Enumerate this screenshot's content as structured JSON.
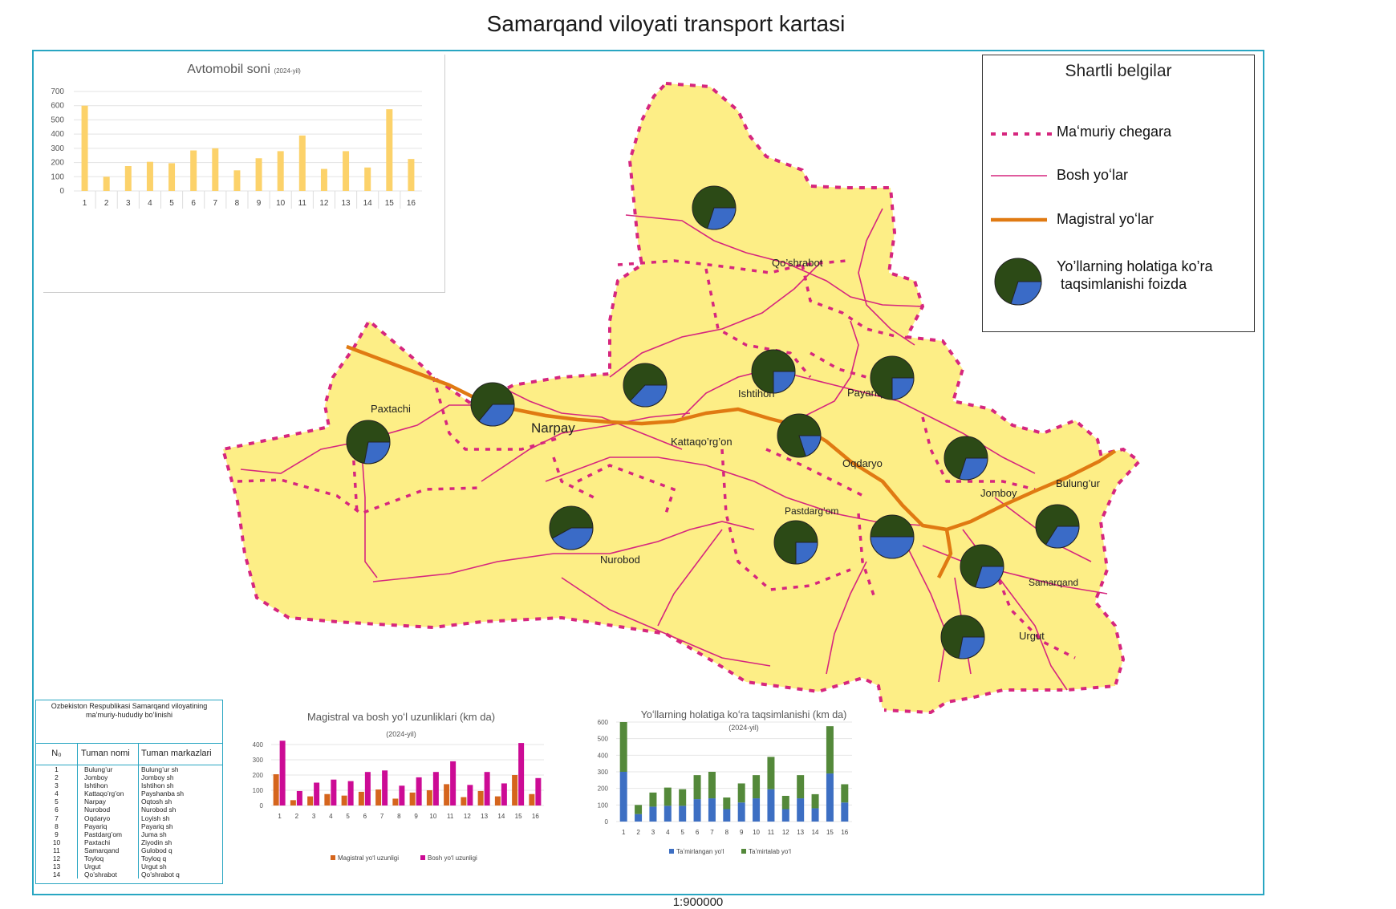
{
  "map_title": "Samarqand viloyati transport kartasi",
  "scale": "1:900000",
  "legend": {
    "title": "Shartli belgilar",
    "items": [
      {
        "label": "Maʻmuriy chegara",
        "color": "#d6267e",
        "icon": "dashed-line"
      },
      {
        "label": "Bosh yoʻlar",
        "color": "#d6267e",
        "icon": "thin-line"
      },
      {
        "label": "Magistral yoʻlar",
        "color": "#e07a12",
        "icon": "thick-line"
      },
      {
        "label": "Yo’llarning holatiga ko’ra\n taqsimlanishi foizda",
        "icon": "pie"
      }
    ]
  },
  "colors": {
    "land": "#fdee86",
    "border": "#d6267e",
    "highway": "#e07a12",
    "pie_good": "#3a6bc7",
    "pie_bad": "#2c4a16",
    "bar_yellow": "#fcd26a",
    "bar_orange": "#d5651d",
    "bar_magenta": "#cc0b95",
    "bar_blue": "#3d6fc3",
    "bar_green": "#54893a",
    "frame": "#29a6c2"
  },
  "places": [
    {
      "name": "Qo’shrabot"
    },
    {
      "name": "Paxtachi"
    },
    {
      "name": "Narpay"
    },
    {
      "name": "Kattaqo’rg’on"
    },
    {
      "name": "Ishtihon"
    },
    {
      "name": "Payariq"
    },
    {
      "name": "Oqdaryo"
    },
    {
      "name": "Jomboy"
    },
    {
      "name": "Bulung’ur"
    },
    {
      "name": "Pastdarg’om"
    },
    {
      "name": "Nurobod"
    },
    {
      "name": "Samarqand"
    },
    {
      "name": "Urgut"
    }
  ],
  "pies": [
    {
      "good_share": 0.3
    },
    {
      "good_share": 0.28
    },
    {
      "good_share": 0.36
    },
    {
      "good_share": 0.37
    },
    {
      "good_share": 0.25
    },
    {
      "good_share": 0.25
    },
    {
      "good_share": 0.2
    },
    {
      "good_share": 0.3
    },
    {
      "good_share": 0.34
    },
    {
      "good_share": 0.25
    },
    {
      "good_share": 0.42
    },
    {
      "good_share": 0.5
    },
    {
      "good_share": 0.3
    },
    {
      "good_share": 0.28
    }
  ],
  "chart_data": [
    {
      "type": "bar",
      "title": "Avtomobil soni",
      "subtitle": "(2024-yil)",
      "categories": [
        "1",
        "2",
        "3",
        "4",
        "5",
        "6",
        "7",
        "8",
        "9",
        "10",
        "11",
        "12",
        "13",
        "14",
        "15",
        "16"
      ],
      "values": [
        600,
        100,
        175,
        205,
        195,
        285,
        300,
        145,
        230,
        280,
        390,
        155,
        280,
        165,
        575,
        225
      ],
      "ylim": [
        0,
        700
      ],
      "yticks": [
        "0",
        "100",
        "200",
        "300",
        "400",
        "500",
        "600",
        "700"
      ]
    },
    {
      "type": "bar",
      "title": "Magistral va bosh yoʻl uzunliklari (km da)",
      "subtitle": "(2024-yil)",
      "categories": [
        "1",
        "2",
        "3",
        "4",
        "5",
        "6",
        "7",
        "8",
        "9",
        "10",
        "11",
        "12",
        "13",
        "14",
        "15",
        "16"
      ],
      "series": [
        {
          "name": "Magistral yoʻl uzunligi",
          "values": [
            205,
            35,
            60,
            75,
            65,
            90,
            105,
            45,
            85,
            100,
            140,
            55,
            95,
            60,
            200,
            75
          ]
        },
        {
          "name": "Bosh yoʻl uzunligi",
          "values": [
            425,
            95,
            150,
            170,
            160,
            220,
            230,
            130,
            185,
            220,
            290,
            135,
            220,
            145,
            410,
            180
          ]
        }
      ],
      "ylim": [
        0,
        400
      ],
      "yticks": [
        "0",
        "100",
        "200",
        "300",
        "400"
      ]
    },
    {
      "type": "bar",
      "title": "Yoʻllarning holatiga koʻra taqsimlanishi (km da)",
      "subtitle": "(2024-yil)",
      "categories": [
        "1",
        "2",
        "3",
        "4",
        "5",
        "6",
        "7",
        "8",
        "9",
        "10",
        "11",
        "12",
        "13",
        "14",
        "15",
        "16"
      ],
      "series": [
        {
          "name": "Taʼmirlangan yoʻl",
          "values": [
            300,
            45,
            90,
            95,
            95,
            135,
            140,
            75,
            115,
            140,
            195,
            75,
            140,
            80,
            290,
            115
          ]
        },
        {
          "name": "Taʼmirtalab yoʻl",
          "values": [
            300,
            55,
            85,
            110,
            100,
            145,
            160,
            70,
            115,
            140,
            195,
            80,
            140,
            85,
            285,
            110
          ]
        }
      ],
      "ylim": [
        0,
        600
      ],
      "yticks": [
        "0",
        "100",
        "200",
        "300",
        "400",
        "500",
        "600"
      ]
    }
  ],
  "district_table": {
    "caption": "Ozbekiston Respublikasi Samarqand viloyatining ma’muriy-hududiy bo’linishi",
    "headers": [
      "N₀",
      "Tuman nomi",
      "Tuman markazlari"
    ],
    "rows": [
      [
        "1",
        "Bulung’ur",
        "Bulung’ur sh"
      ],
      [
        "2",
        "Jomboy",
        "Jomboy sh"
      ],
      [
        "3",
        "Ishtihon",
        "Ishtihon sh"
      ],
      [
        "4",
        "Kattaqo’rg’on",
        "Payshanba sh"
      ],
      [
        "5",
        "Narpay",
        "Oqtosh sh"
      ],
      [
        "6",
        "Nurobod",
        "Nurobod sh"
      ],
      [
        "7",
        "Oqdaryo",
        "Loyish sh"
      ],
      [
        "8",
        "Payariq",
        "Payariq sh"
      ],
      [
        "9",
        "Pastdarg’om",
        "Juma sh"
      ],
      [
        "10",
        "Paxtachi",
        "Ziyodin sh"
      ],
      [
        "11",
        "Samarqand",
        "Gulobod q"
      ],
      [
        "12",
        "Toyloq",
        "Toyloq q"
      ],
      [
        "13",
        "Urgut",
        "Urgut sh"
      ],
      [
        "14",
        "Qo’shrabot",
        "Qo’shrabot q"
      ]
    ]
  }
}
